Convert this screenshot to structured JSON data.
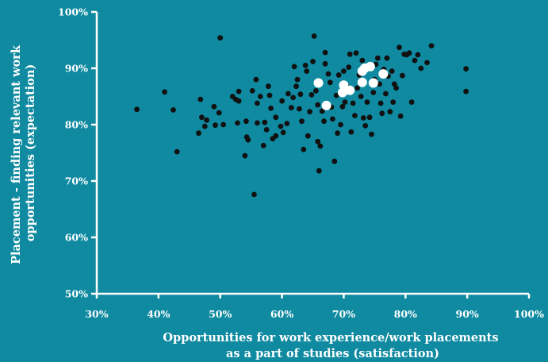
{
  "chart_data": {
    "type": "scatter",
    "xlabel_lines": [
      "Opportunities for work experience/work placements",
      "as a part of studies (satisfaction)"
    ],
    "ylabel_lines": [
      "Placement - finding relevant work",
      "opportunities (expectation)"
    ],
    "xlim": [
      30,
      100
    ],
    "ylim": [
      50,
      100
    ],
    "x_ticks": [
      "30%",
      "40%",
      "50%",
      "60%",
      "70%",
      "80%",
      "90%",
      "100%"
    ],
    "y_ticks": [
      "50%",
      "60%",
      "70%",
      "80%",
      "90%",
      "100%"
    ],
    "grid": false,
    "legend": "none",
    "colors": {
      "background": "#0f8aa0",
      "axis": "#ffffff",
      "series_black": "#111111",
      "series_white": "#ffffff"
    },
    "series": [
      {
        "marker_color": "black",
        "points": [
          [
            36.5,
            82.7
          ],
          [
            41,
            85.8
          ],
          [
            42.4,
            82.6
          ],
          [
            43,
            75.2
          ],
          [
            46.5,
            78.5
          ],
          [
            47,
            81.3
          ],
          [
            46.8,
            84.5
          ],
          [
            47.8,
            80.8
          ],
          [
            47.5,
            79.7
          ],
          [
            49,
            83.2
          ],
          [
            49.2,
            79.9
          ],
          [
            49.8,
            82.1
          ],
          [
            50,
            95.4
          ],
          [
            50.5,
            80
          ],
          [
            52,
            85
          ],
          [
            52.5,
            84.5
          ],
          [
            52.8,
            80.3
          ],
          [
            53,
            85.9
          ],
          [
            53,
            84.2
          ],
          [
            54,
            74.5
          ],
          [
            54.2,
            80.6
          ],
          [
            54.5,
            77.3
          ],
          [
            54.3,
            77.8
          ],
          [
            55.2,
            86
          ],
          [
            55.5,
            67.6
          ],
          [
            55.8,
            88
          ],
          [
            56,
            83.8
          ],
          [
            56,
            80.3
          ],
          [
            56.5,
            85
          ],
          [
            57,
            76.3
          ],
          [
            57.5,
            79.1
          ],
          [
            57.2,
            80.4
          ],
          [
            57.8,
            86.8
          ],
          [
            58,
            85.2
          ],
          [
            58.2,
            82.9
          ],
          [
            58.5,
            77.5
          ],
          [
            59,
            81.3
          ],
          [
            59,
            78
          ],
          [
            59.8,
            79.7
          ],
          [
            60,
            84.2
          ],
          [
            60.2,
            78.6
          ],
          [
            60.8,
            80.2
          ],
          [
            61,
            85.5
          ],
          [
            61.5,
            83
          ],
          [
            61.8,
            84.8
          ],
          [
            62,
            90.3
          ],
          [
            62.3,
            86.8
          ],
          [
            62.5,
            88
          ],
          [
            62.8,
            82.8
          ],
          [
            63,
            85.4
          ],
          [
            63.2,
            80.6
          ],
          [
            63.5,
            75.6
          ],
          [
            63.8,
            90.5
          ],
          [
            64,
            89.5
          ],
          [
            64.2,
            78
          ],
          [
            64.5,
            82.3
          ],
          [
            64.8,
            85.3
          ],
          [
            65,
            91.2
          ],
          [
            65.2,
            95.7
          ],
          [
            65.5,
            86
          ],
          [
            65.8,
            77
          ],
          [
            65.8,
            83.5
          ],
          [
            66,
            71.8
          ],
          [
            66.2,
            76.2
          ],
          [
            66.5,
            82.4
          ],
          [
            66.8,
            80.6
          ],
          [
            67,
            90.8
          ],
          [
            67,
            92.8
          ],
          [
            67.5,
            89
          ],
          [
            67.8,
            87.5
          ],
          [
            68,
            83.1
          ],
          [
            68.2,
            81
          ],
          [
            68.5,
            73.5
          ],
          [
            68.8,
            85.2
          ],
          [
            69,
            78.5
          ],
          [
            69.2,
            88.8
          ],
          [
            69.5,
            80
          ],
          [
            69.8,
            83.2
          ],
          [
            70,
            89.5
          ],
          [
            70.2,
            84
          ],
          [
            70.5,
            86.8
          ],
          [
            70.8,
            90.2
          ],
          [
            71,
            92.5
          ],
          [
            71.2,
            78.7
          ],
          [
            71.5,
            83.8
          ],
          [
            71.8,
            81.6
          ],
          [
            72,
            92.7
          ],
          [
            72.2,
            86.5
          ],
          [
            72.5,
            88.8
          ],
          [
            72.8,
            85
          ],
          [
            73,
            91.4
          ],
          [
            73.2,
            81.2
          ],
          [
            73.5,
            79.8
          ],
          [
            73.8,
            84
          ],
          [
            74.2,
            81.3
          ],
          [
            74.5,
            78.3
          ],
          [
            74.8,
            85.7
          ],
          [
            75,
            88
          ],
          [
            75.2,
            90.7
          ],
          [
            75.5,
            91.8
          ],
          [
            75.8,
            87.2
          ],
          [
            76,
            83.8
          ],
          [
            76.2,
            82
          ],
          [
            76.5,
            89.8
          ],
          [
            76.8,
            85.5
          ],
          [
            77,
            91.8
          ],
          [
            77.2,
            88.6
          ],
          [
            77.5,
            82.3
          ],
          [
            77.8,
            89.5
          ],
          [
            78,
            84
          ],
          [
            78.2,
            87.2
          ],
          [
            78.5,
            86.5
          ],
          [
            79,
            93.7
          ],
          [
            79.2,
            81.5
          ],
          [
            79.5,
            88.7
          ],
          [
            79.8,
            92.5
          ],
          [
            80.2,
            92.4
          ],
          [
            80.6,
            92.7
          ],
          [
            81,
            84
          ],
          [
            81.5,
            91.4
          ],
          [
            82,
            92.4
          ],
          [
            82.5,
            90
          ],
          [
            83.5,
            91
          ],
          [
            84.2,
            94
          ],
          [
            89.8,
            89.9
          ],
          [
            89.8,
            85.9
          ]
        ]
      },
      {
        "marker_color": "white",
        "points": [
          [
            65.9,
            87.4
          ],
          [
            67.2,
            83.4
          ],
          [
            69.8,
            85.7
          ],
          [
            70,
            87
          ],
          [
            71,
            86.1
          ],
          [
            73,
            87.5
          ],
          [
            73,
            89.5
          ],
          [
            73.4,
            90
          ],
          [
            74.3,
            90.3
          ],
          [
            74.8,
            87.4
          ],
          [
            76.4,
            89
          ]
        ]
      }
    ]
  }
}
